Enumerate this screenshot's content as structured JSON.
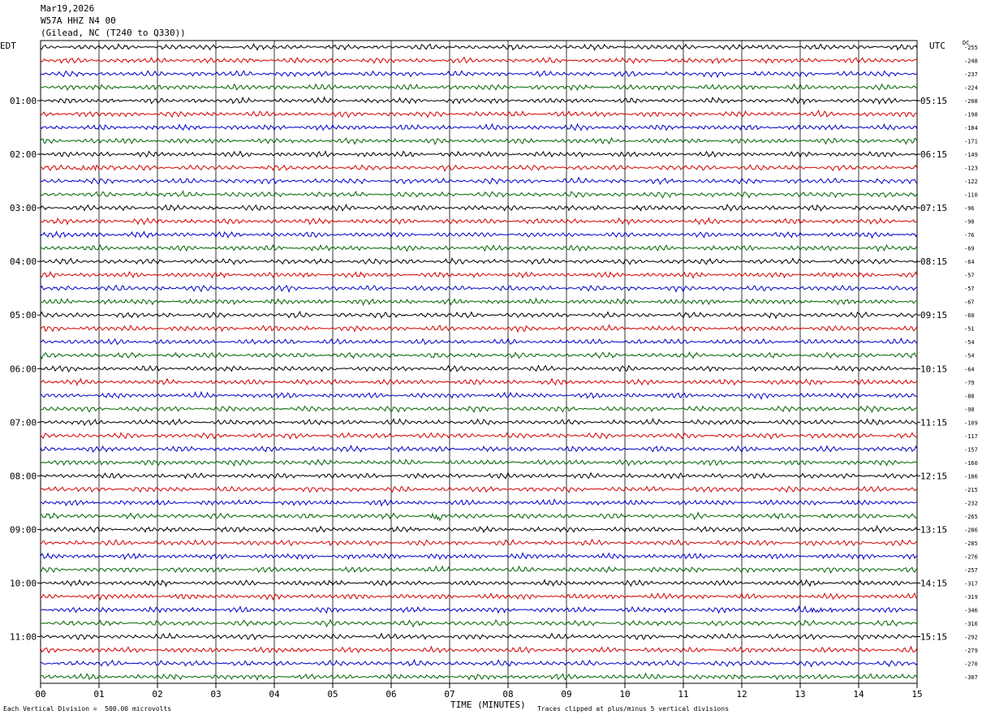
{
  "header": {
    "date": "Mar19,2026",
    "station": "W57A HHZ N4 00",
    "location": "(Gilead, NC (T240 to Q330))"
  },
  "left_tz": "EDT",
  "right_tz": "UTC",
  "dc_label": "DC",
  "footer": {
    "scale_note": "Each Vertical Division =  500.00 microvolts",
    "xlabel": "TIME (MINUTES)",
    "clip_note": "Traces clipped at plus/minus 5 vertical divisions"
  },
  "colors": [
    "#000000",
    "#d40000",
    "#0000c8",
    "#006400"
  ],
  "chart_data": {
    "type": "line",
    "title": "W57A HHZ N4 00",
    "xlabel": "TIME (MINUTES)",
    "xlim": [
      0,
      15
    ],
    "x_ticks": [
      "00",
      "01",
      "02",
      "03",
      "04",
      "05",
      "06",
      "07",
      "08",
      "09",
      "10",
      "11",
      "12",
      "13",
      "14",
      "15"
    ],
    "left_hour_labels": [
      "01:00",
      "02:00",
      "03:00",
      "04:00",
      "05:00",
      "06:00",
      "07:00",
      "08:00",
      "09:00",
      "10:00",
      "11:00"
    ],
    "right_hour_labels": [
      "05:15",
      "06:15",
      "07:15",
      "08:15",
      "09:15",
      "10:15",
      "11:15",
      "12:15",
      "13:15",
      "14:15",
      "15:15"
    ],
    "dc_offsets": [
      -255,
      -248,
      -237,
      -224,
      -208,
      -198,
      -184,
      -171,
      -149,
      -123,
      -122,
      -110,
      -96,
      -90,
      -76,
      -69,
      -64,
      -57,
      -57,
      -67,
      -60,
      -51,
      -54,
      -54,
      -64,
      -79,
      -88,
      -90,
      -109,
      -117,
      -157,
      -160,
      -186,
      -215,
      -232,
      -265,
      -286,
      -285,
      -276,
      -257,
      -317,
      -319,
      -346,
      -316,
      -292,
      -279,
      -270,
      -307
    ],
    "events": [
      {
        "trace": 35,
        "minute_start": 6.7,
        "minute_end": 6.95,
        "amplitude": "large"
      },
      {
        "trace": 9,
        "minute_start": 0.6,
        "minute_end": 1.0,
        "amplitude": "medium"
      },
      {
        "trace": 42,
        "minute_start": 13.1,
        "minute_end": 13.6,
        "amplitude": "medium"
      }
    ]
  }
}
